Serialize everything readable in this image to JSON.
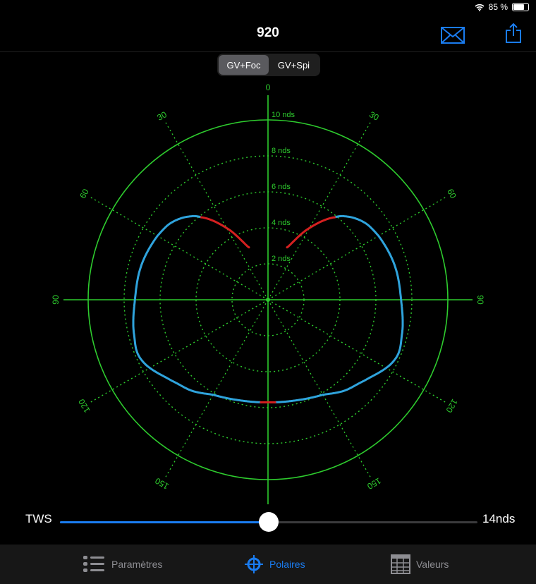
{
  "status_bar": {
    "battery_text": "85 %",
    "battery_level": 0.85,
    "icons": [
      "wifi-icon",
      "battery-icon"
    ]
  },
  "header": {
    "title": "920",
    "icons": [
      "mail-icon",
      "share-icon"
    ],
    "accent": "#1a7cf0"
  },
  "segmented": {
    "options": [
      "GV+Foc",
      "GV+Spi"
    ],
    "selected": 0
  },
  "chart_data": {
    "type": "polar",
    "angle_ticks": [
      "0",
      "30",
      "60",
      "90",
      "120",
      "150",
      "180"
    ],
    "radial_ticks": [
      "2 nds",
      "4 nds",
      "6 nds",
      "8 nds",
      "10 nds"
    ],
    "radial_max": 10,
    "grid": true,
    "grid_color": "#2ecc2e",
    "series": [
      {
        "color": "#2fa3dc",
        "highlight_color": "#d42020",
        "mirrored": true,
        "points": [
          [
            20,
            3.1
          ],
          [
            30,
            4.6
          ],
          [
            39,
            5.9
          ],
          [
            45,
            6.5
          ],
          [
            52,
            6.9
          ],
          [
            60,
            7.1
          ],
          [
            75,
            7.3
          ],
          [
            90,
            7.4
          ],
          [
            105,
            7.7
          ],
          [
            115,
            7.8
          ],
          [
            130,
            7.0
          ],
          [
            140,
            6.6
          ],
          [
            150,
            6.1
          ],
          [
            165,
            5.8
          ],
          [
            180,
            5.7
          ]
        ],
        "highlight_ranges": [
          [
            20,
            39
          ],
          [
            176,
            180
          ]
        ]
      }
    ]
  },
  "slider": {
    "label": "TWS",
    "value_text": "14nds",
    "fraction": 0.5
  },
  "tabbar": {
    "items": [
      {
        "label": "Paramètres",
        "icon": "list-icon"
      },
      {
        "label": "Polaires",
        "icon": "crosshair-icon"
      },
      {
        "label": "Valeurs",
        "icon": "table-icon"
      }
    ],
    "selected": 1
  }
}
